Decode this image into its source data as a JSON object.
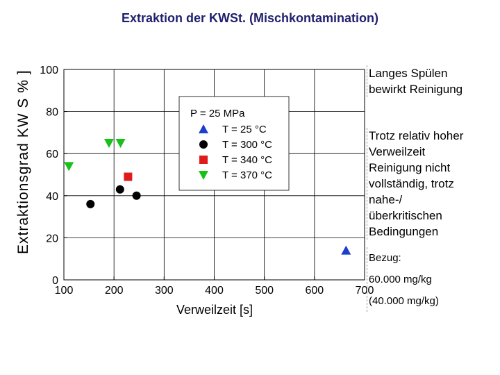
{
  "slide": {
    "title": "Extraktion der KWSt. (Mischkontamination)"
  },
  "notes": {
    "note1": [
      "Langes Spülen",
      "bewirkt Reinigung"
    ],
    "note2": [
      "Trotz relativ hoher",
      "Verweilzeit",
      "Reinigung nicht",
      "vollständig, trotz",
      "nahe-/",
      "überkritischen",
      "Bedingungen"
    ],
    "note3": [
      "Bezug:",
      "60.000 mg/kg",
      "(40.000 mg/kg)"
    ]
  },
  "chart_data": {
    "type": "scatter",
    "title": "",
    "xlabel": "Verweilzeit [s]",
    "ylabel": "Extraktionsgrad KW-S %",
    "ylabel_as_rendered": "Extraktionsgrad KW S %  ]",
    "xlim": [
      100,
      700
    ],
    "ylim": [
      0,
      100
    ],
    "x_ticks": [
      100,
      200,
      300,
      400,
      500,
      600,
      700
    ],
    "y_ticks": [
      0,
      20,
      40,
      60,
      80,
      100
    ],
    "grid": true,
    "legend_position": "top-center",
    "legend_header": "P = 25 MPa",
    "series": [
      {
        "name": "T =  25 °C",
        "marker": "triangle-up",
        "color": "#1a3fcc",
        "points": [
          [
            663,
            14
          ]
        ]
      },
      {
        "name": "T = 300 °C",
        "marker": "circle",
        "color": "#000000",
        "points": [
          [
            153,
            36
          ],
          [
            212,
            43
          ],
          [
            245,
            40
          ]
        ]
      },
      {
        "name": "T = 340 °C",
        "marker": "square",
        "color": "#e01b1b",
        "points": [
          [
            228,
            49
          ]
        ]
      },
      {
        "name": "T = 370 °C",
        "marker": "triangle-down",
        "color": "#17c117",
        "points": [
          [
            110,
            54
          ],
          [
            190,
            65
          ],
          [
            213,
            65
          ]
        ]
      }
    ]
  }
}
